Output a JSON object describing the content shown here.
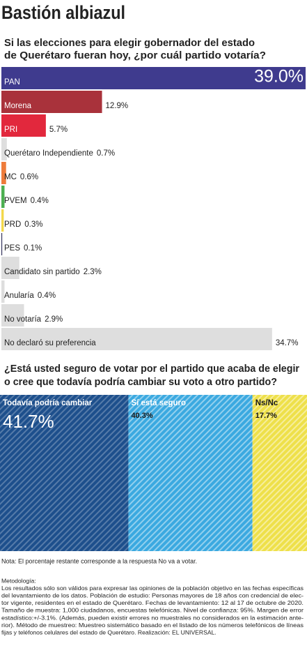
{
  "header": {
    "title": "Bastión albiazul"
  },
  "chart_data": [
    {
      "type": "hbar",
      "title": [
        "Si las elecciones para elegir gobernador del estado",
        "de Querétaro fueran hoy, ¿por cuál partido votaría?"
      ],
      "categories": [
        "PAN",
        "Morena",
        "PRI",
        "Querétaro Independiente",
        "MC",
        "PVEM",
        "PRD",
        "PES",
        "Candidato sin partido",
        "Anularía",
        "No votaría",
        "No declaró su preferencia"
      ],
      "values": [
        39.0,
        12.9,
        5.7,
        0.7,
        0.6,
        0.4,
        0.3,
        0.1,
        2.3,
        0.4,
        2.9,
        34.7
      ],
      "value_labels": [
        "39.0%",
        "12.9%",
        "5.7%",
        "0.7%",
        "0.6%",
        "0.4%",
        "0.3%",
        "0.1%",
        "2.3%",
        "0.4%",
        "2.9%",
        "34.7%"
      ],
      "colors": [
        "#3f3b8e",
        "#a9323b",
        "#e2283d",
        "#dedede",
        "#ee7b3a",
        "#4caf50",
        "#f3d84a",
        "#2b2a55",
        "#dedede",
        "#dedede",
        "#dedede",
        "#dedede"
      ]
    },
    {
      "type": "stacked_block",
      "title": [
        "¿Está usted seguro de votar por el partido que acaba de elegir",
        "o cree que todavía podría cambiar su voto a otro partido?"
      ],
      "categories": [
        "Todavía podría cambiar",
        "Sí está seguro",
        "Ns/Nc"
      ],
      "values": [
        41.7,
        40.3,
        17.7
      ],
      "value_labels": [
        "41.7%",
        "40.3%",
        "17.7%"
      ],
      "colors": [
        "#1d4f8c",
        "#3ba9e0",
        "#eee04a"
      ]
    }
  ],
  "note": "Nota: El porcentaje restante corresponde a la respuesta No va a votar.",
  "methodology": [
    "Metodología:",
    "Los resultados sólo son válidos para expresar las opiniones de la población objetivo en las fechas específicas",
    "del levantamiento de los datos. Población de estudio: Personas mayores de 18 años con credencial de elec-",
    "tor vigente, residentes en el estado de Querétaro. Fechas de levantamiento: 12 al 17 de octubre de 2020.",
    "Tamaño de muestra: 1,000 ciudadanos, encuestas telefónicas. Nivel de confianza: 95%. Margen de error",
    "estadístico:+/-3.1%. (Además, pueden existir errores no muestrales no considerados en la estimación ante-",
    "rior). Método de muestreo: Muestreo sistemático basado en el listado de los números telefónicos de líneas",
    "fijas y teléfonos celulares del estado de Querétaro. Realización: EL UNIVERSAL."
  ]
}
